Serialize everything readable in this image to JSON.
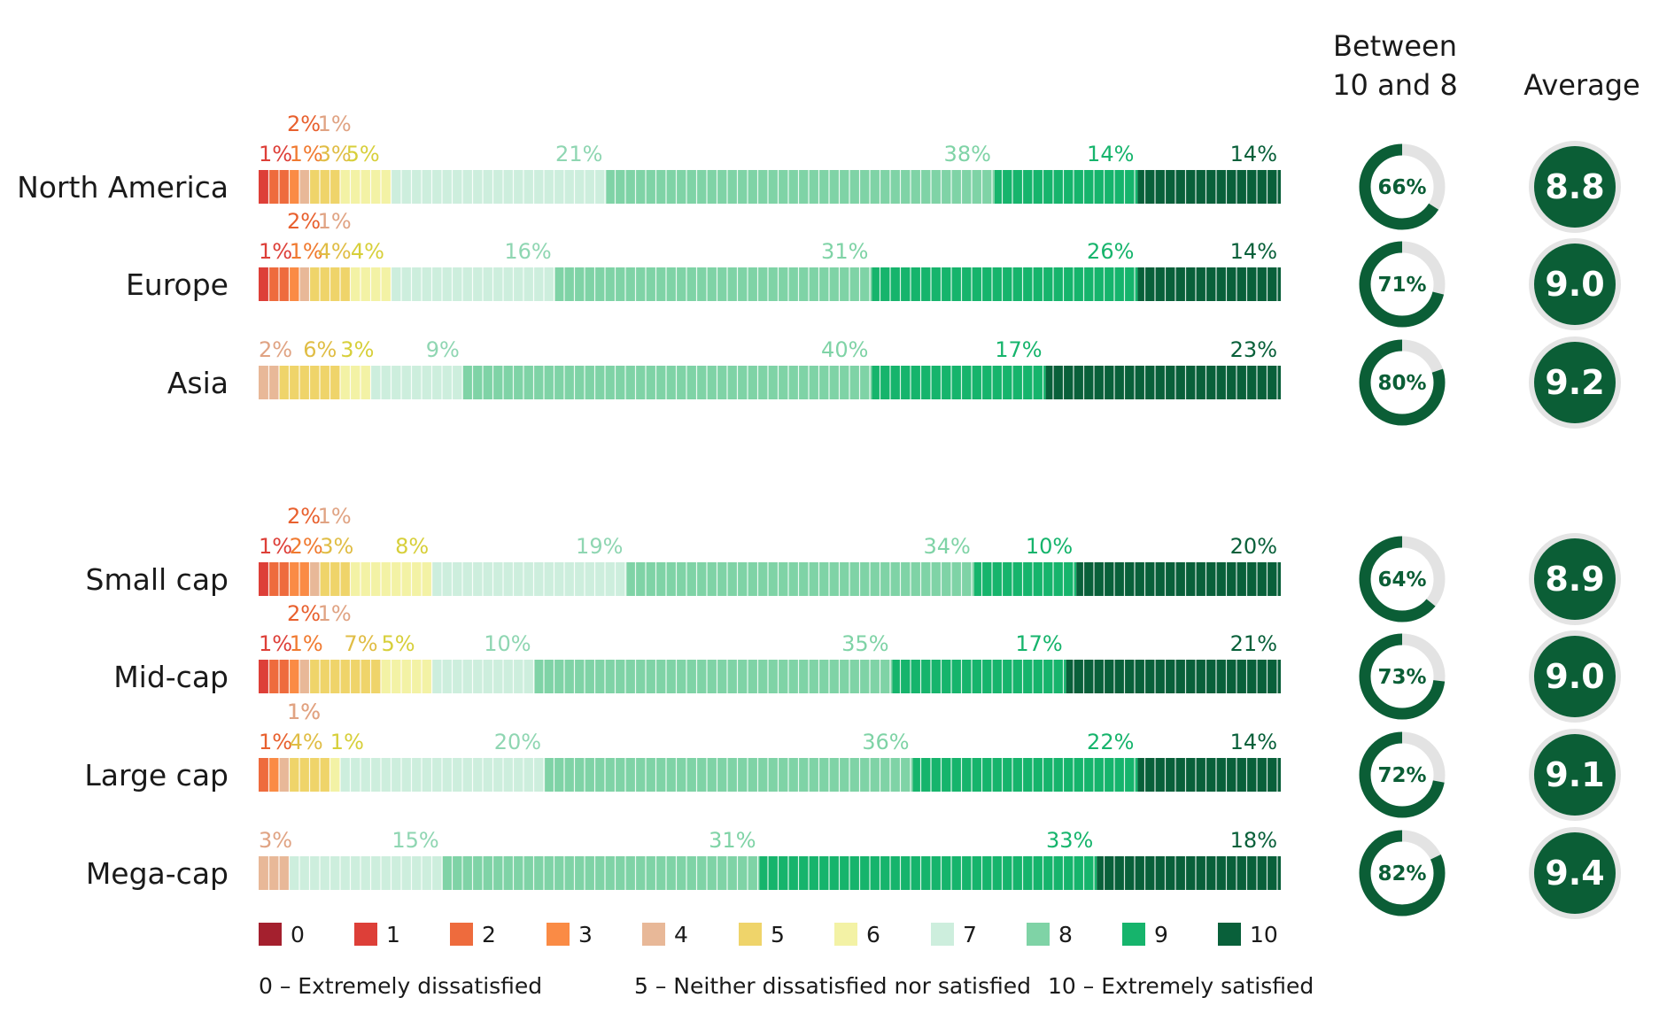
{
  "chart_data": {
    "type": "bar",
    "stacked": true,
    "orientation": "horizontal",
    "score_levels": [
      "0",
      "1",
      "2",
      "3",
      "4",
      "5",
      "6",
      "7",
      "8",
      "9",
      "10"
    ],
    "colors": [
      "#a4202e",
      "#dd3f38",
      "#ee6b3d",
      "#fa8b45",
      "#e8b898",
      "#efd46a",
      "#f3f2a5",
      "#cdeedd",
      "#7fd3a6",
      "#16b46c",
      "#09603a"
    ],
    "scale_descriptions": [
      "0 – Extremely dissatisfied",
      "5 – Neither dissatisfied nor satisfied",
      "10 – Extremely satisfied"
    ],
    "column_headers": {
      "top_share": "Between\n10 and 8",
      "average": "Average"
    },
    "rows": [
      {
        "name": "North America",
        "values": [
          0,
          1,
          2,
          1,
          1,
          3,
          5,
          21,
          38,
          14,
          14
        ],
        "top_share": 66,
        "top_share_label": "66%",
        "average": 8.8,
        "average_label": "8.8"
      },
      {
        "name": "Europe",
        "values": [
          0,
          1,
          2,
          1,
          1,
          4,
          4,
          16,
          31,
          26,
          14
        ],
        "top_share": 71,
        "top_share_label": "71%",
        "average": 9.0,
        "average_label": "9.0"
      },
      {
        "name": "Asia",
        "values": [
          0,
          0,
          0,
          0,
          2,
          6,
          3,
          9,
          40,
          17,
          23
        ],
        "top_share": 80,
        "top_share_label": "80%",
        "average": 9.2,
        "average_label": "9.2"
      },
      {
        "name": "Small cap",
        "values": [
          0,
          1,
          2,
          2,
          1,
          3,
          8,
          19,
          34,
          10,
          20
        ],
        "top_share": 64,
        "top_share_label": "64%",
        "average": 8.9,
        "average_label": "8.9"
      },
      {
        "name": "Mid-cap",
        "values": [
          0,
          1,
          2,
          1,
          1,
          7,
          5,
          10,
          35,
          17,
          21
        ],
        "top_share": 73,
        "top_share_label": "73%",
        "average": 9.0,
        "average_label": "9.0"
      },
      {
        "name": "Large cap",
        "values": [
          0,
          0,
          1,
          1,
          1,
          4,
          1,
          20,
          36,
          22,
          14
        ],
        "top_share": 72,
        "top_share_label": "72%",
        "average": 9.1,
        "average_label": "9.1"
      },
      {
        "name": "Mega-cap",
        "values": [
          0,
          0,
          0,
          0,
          3,
          0,
          0,
          15,
          31,
          33,
          18
        ],
        "top_share": 82,
        "top_share_label": "82%",
        "average": 9.4,
        "average_label": "9.4"
      }
    ]
  }
}
